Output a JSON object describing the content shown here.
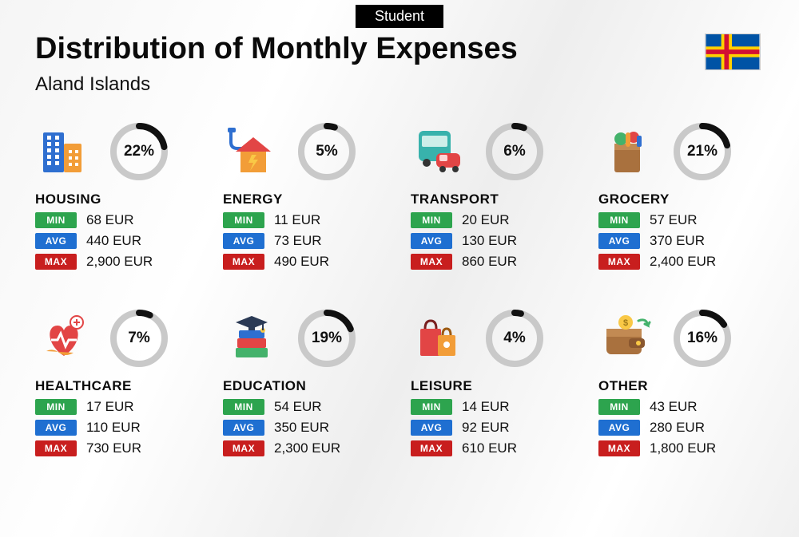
{
  "badge": "Student",
  "title": "Distribution of Monthly Expenses",
  "subtitle": "Aland Islands",
  "flag": {
    "base": "#0053a5",
    "cross_outer": "#ffd100",
    "cross_inner": "#d21034"
  },
  "donut": {
    "ring_bg": "#c9c9c9",
    "ring_fg": "#111111",
    "ring_width": 8
  },
  "tag_colors": {
    "min": "#2da44e",
    "avg": "#1f6fd1",
    "max": "#c81e1e"
  },
  "labels": {
    "min": "MIN",
    "avg": "AVG",
    "max": "MAX"
  },
  "currency": "EUR",
  "categories": [
    {
      "key": "housing",
      "name": "HOUSING",
      "pct": 22,
      "min": "68 EUR",
      "avg": "440 EUR",
      "max": "2,900 EUR",
      "icon": "buildings"
    },
    {
      "key": "energy",
      "name": "ENERGY",
      "pct": 5,
      "min": "11 EUR",
      "avg": "73 EUR",
      "max": "490 EUR",
      "icon": "energy-house"
    },
    {
      "key": "transport",
      "name": "TRANSPORT",
      "pct": 6,
      "min": "20 EUR",
      "avg": "130 EUR",
      "max": "860 EUR",
      "icon": "bus-car"
    },
    {
      "key": "grocery",
      "name": "GROCERY",
      "pct": 21,
      "min": "57 EUR",
      "avg": "370 EUR",
      "max": "2,400 EUR",
      "icon": "grocery-bag"
    },
    {
      "key": "healthcare",
      "name": "HEALTHCARE",
      "pct": 7,
      "min": "17 EUR",
      "avg": "110 EUR",
      "max": "730 EUR",
      "icon": "health-heart"
    },
    {
      "key": "education",
      "name": "EDUCATION",
      "pct": 19,
      "min": "54 EUR",
      "avg": "350 EUR",
      "max": "2,300 EUR",
      "icon": "grad-books"
    },
    {
      "key": "leisure",
      "name": "LEISURE",
      "pct": 4,
      "min": "14 EUR",
      "avg": "92 EUR",
      "max": "610 EUR",
      "icon": "shopping-bags"
    },
    {
      "key": "other",
      "name": "OTHER",
      "pct": 16,
      "min": "43 EUR",
      "avg": "280 EUR",
      "max": "1,800 EUR",
      "icon": "wallet"
    }
  ],
  "icon_palette": {
    "blue": "#2f6fd0",
    "dark": "#2b3a55",
    "orange": "#f29d38",
    "red": "#e24545",
    "yellow": "#f9c846",
    "teal": "#38b2ac",
    "green": "#44b26b",
    "brown": "#a9713e",
    "pink": "#ef5f83"
  }
}
